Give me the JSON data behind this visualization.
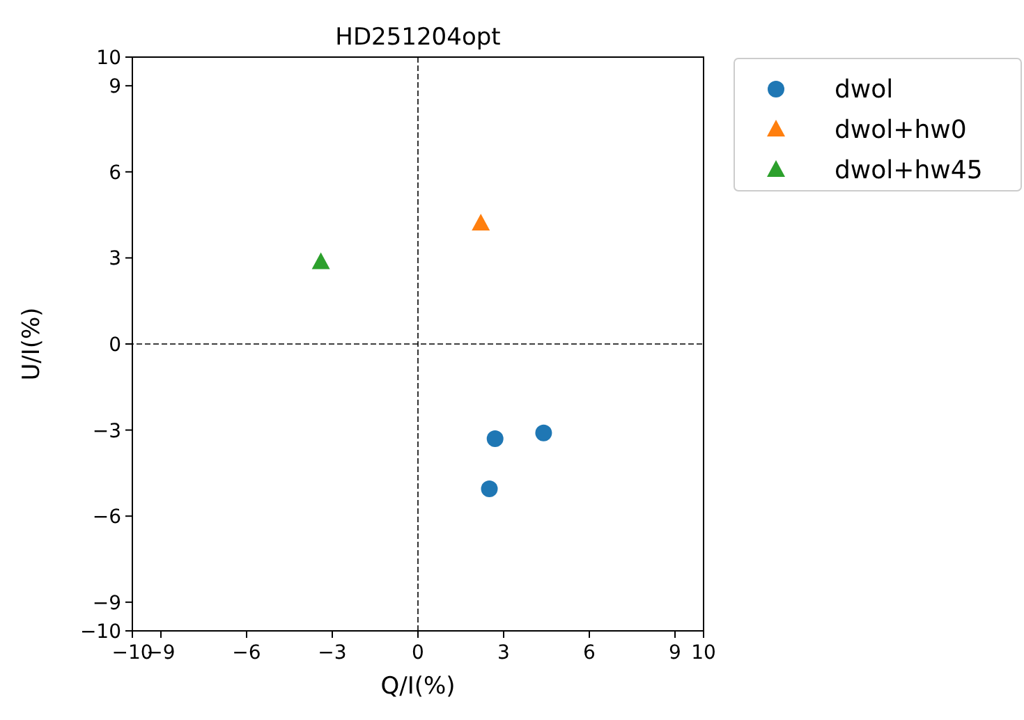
{
  "chart_data": {
    "type": "scatter",
    "title": "HD251204opt",
    "xlabel": "Q/I(%)",
    "ylabel": "U/I(%)",
    "xlim": [
      -10,
      10
    ],
    "ylim": [
      -10,
      10
    ],
    "xticks": [
      {
        "value": -10,
        "label": "−10"
      },
      {
        "value": -9,
        "label": "−9"
      },
      {
        "value": -6,
        "label": "−6"
      },
      {
        "value": -3,
        "label": "−3"
      },
      0,
      3,
      6,
      9,
      10
    ],
    "yticks": [
      {
        "value": -10,
        "label": "−10"
      },
      {
        "value": -9,
        "label": "−9"
      },
      {
        "value": -6,
        "label": "−6"
      },
      {
        "value": -3,
        "label": "−3"
      },
      0,
      3,
      6,
      9,
      10
    ],
    "grid": false,
    "legend": "top right",
    "ref_lines": [
      {
        "axis": "x",
        "value": 0,
        "color": "#000000",
        "line_style": "dashed"
      },
      {
        "axis": "y",
        "value": 0,
        "color": "#000000",
        "line_style": "dashed"
      }
    ],
    "series": [
      {
        "name": "dwol",
        "color": "#1f77b4",
        "marker": "circle",
        "x": [
          4.4,
          2.7,
          2.5
        ],
        "values": [
          -3.1,
          -3.3,
          -5.05
        ]
      },
      {
        "name": "dwol+hw0",
        "color": "#ff7f0e",
        "marker": "triangle",
        "x": [
          2.2
        ],
        "values": [
          4.2
        ]
      },
      {
        "name": "dwol+hw45",
        "color": "#2ca02c",
        "marker": "triangle",
        "x": [
          -3.4
        ],
        "values": [
          2.85
        ]
      }
    ]
  }
}
